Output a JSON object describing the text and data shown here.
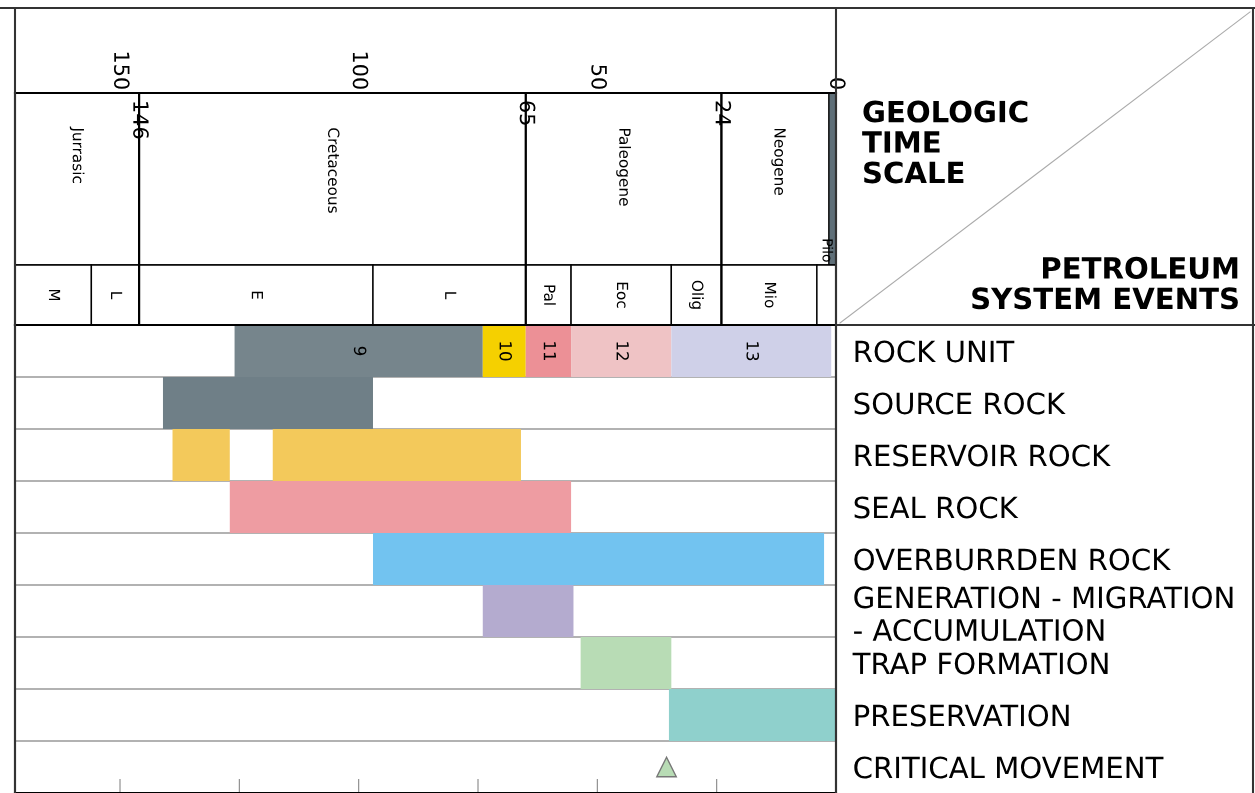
{
  "chart_data": [
    {
      "type": "bar",
      "orientation": "horizontal",
      "categories": [
        null,
        null
      ],
      "xlim": [
        172,
        0
      ],
      "xticks": [
        150,
        {
          "value": 125,
          "label": null
        },
        100,
        {
          "value": 75,
          "label": null
        },
        50,
        {
          "value": 25,
          "label": null
        },
        0
      ],
      "ref_lines": [
        {
          "axis": "x",
          "value": 146,
          "label": "146"
        },
        {
          "axis": "x",
          "value": 65,
          "label": "65"
        },
        {
          "axis": "x",
          "value": 24,
          "label": "24"
        }
      ],
      "annotations": [
        {
          "text": "Pilo",
          "x": 2
        },
        "GEOLOGIC\nTIME\nSCALE",
        "PETROLEUM\nSYSTEM EVENTS"
      ],
      "tick_labels": "x",
      "series": [
        {
          "name": "Jurrasic",
          "color": "#ffffff",
          "base": [
            146,
            null
          ],
          "values": [
            26,
            null
          ]
        },
        {
          "name": "Cretaceous",
          "color": "#ffffff",
          "base": [
            65,
            null
          ],
          "values": [
            81,
            null
          ]
        },
        {
          "name": "Paleogene",
          "color": "#ffffff",
          "base": [
            24,
            null
          ],
          "values": [
            41,
            null
          ]
        },
        {
          "name": "Neogene",
          "color": "#ffffff",
          "base": [
            0,
            null
          ],
          "values": [
            24,
            null
          ]
        },
        {
          "color": "#5f6f78",
          "base": [
            0,
            null
          ],
          "values": [
            1.5,
            null
          ]
        },
        {
          "name": "M",
          "color": "#ffffff",
          "base": [
            null,
            156
          ],
          "values": [
            null,
            16
          ]
        },
        {
          "name": "L",
          "color": "#ffffff",
          "base": [
            null,
            146
          ],
          "values": [
            null,
            10
          ]
        },
        {
          "name": "E",
          "color": "#ffffff",
          "base": [
            null,
            97
          ],
          "values": [
            null,
            49
          ]
        },
        {
          "name": "L",
          "color": "#ffffff",
          "base": [
            null,
            65
          ],
          "values": [
            null,
            32
          ]
        },
        {
          "name": "Pal",
          "color": "#ffffff",
          "base": [
            null,
            55.5
          ],
          "values": [
            null,
            9.5
          ]
        },
        {
          "name": "Eoc",
          "color": "#ffffff",
          "base": [
            null,
            34.5
          ],
          "values": [
            null,
            21
          ]
        },
        {
          "name": "Olig",
          "color": "#ffffff",
          "base": [
            null,
            24
          ],
          "values": [
            null,
            10.5
          ]
        },
        {
          "name": "Mio",
          "color": "#ffffff",
          "base": [
            null,
            4
          ],
          "values": [
            null,
            20
          ]
        },
        {
          "color": "#ffffff",
          "base": [
            null,
            0
          ],
          "values": [
            null,
            4
          ]
        }
      ]
    },
    {
      "type": "bar",
      "orientation": "horizontal",
      "categories": [
        "ROCK UNIT",
        "SOURCE ROCK",
        "RESERVOIR ROCK",
        "SEAL ROCK",
        "OVERBURRDEN ROCK",
        "GENERATION - MIGRATION - ACCUMULATION",
        "TRAP FORMATION",
        "PRESERVATION",
        "CRITICAL MOVEMENT"
      ],
      "xlim": [
        172,
        0
      ],
      "xticks": [
        {
          "value": 150,
          "label": null
        },
        {
          "value": 125,
          "label": null
        },
        {
          "value": 100,
          "label": null
        },
        {
          "value": 75,
          "label": null
        },
        {
          "value": 50,
          "label": null
        },
        {
          "value": 25,
          "label": null
        }
      ],
      "tick_labels": "y",
      "series": [
        {
          "name": "9",
          "color": "#76858c",
          "base": [
            74,
            null,
            null,
            null,
            null,
            null,
            null,
            null,
            null
          ],
          "values": [
            52,
            null,
            null,
            null,
            null,
            null,
            null,
            null,
            null
          ]
        },
        {
          "name": "10",
          "color": "#f5d000",
          "base": [
            65,
            null,
            null,
            null,
            null,
            null,
            null,
            null,
            null
          ],
          "values": [
            9,
            null,
            null,
            null,
            null,
            null,
            null,
            null,
            null
          ]
        },
        {
          "name": "11",
          "color": "#ec9096",
          "base": [
            55.5,
            null,
            null,
            null,
            null,
            null,
            null,
            null,
            null
          ],
          "values": [
            9.5,
            null,
            null,
            null,
            null,
            null,
            null,
            null,
            null
          ]
        },
        {
          "name": "12",
          "color": "#efc3c5",
          "base": [
            34.5,
            null,
            null,
            null,
            null,
            null,
            null,
            null,
            null
          ],
          "values": [
            21,
            null,
            null,
            null,
            null,
            null,
            null,
            null,
            null
          ]
        },
        {
          "name": "13",
          "color": "#cfd0e8",
          "base": [
            1,
            null,
            null,
            null,
            null,
            null,
            null,
            null,
            null
          ],
          "values": [
            33.5,
            null,
            null,
            null,
            null,
            null,
            null,
            null,
            null
          ]
        },
        {
          "color": "#6f7f87",
          "base": [
            null,
            97,
            null,
            null,
            null,
            null,
            null,
            null,
            null
          ],
          "values": [
            null,
            44,
            null,
            null,
            null,
            null,
            null,
            null,
            null
          ]
        },
        {
          "color": "#f3c95b",
          "base": [
            null,
            null,
            127,
            null,
            null,
            null,
            null,
            null,
            null
          ],
          "values": [
            null,
            null,
            12,
            null,
            null,
            null,
            null,
            null,
            null
          ]
        },
        {
          "color": "#f3c95b",
          "base": [
            null,
            null,
            66,
            null,
            null,
            null,
            null,
            null,
            null
          ],
          "values": [
            null,
            null,
            52,
            null,
            null,
            null,
            null,
            null,
            null
          ]
        },
        {
          "color": "#ee9ca2",
          "base": [
            null,
            null,
            null,
            55.5,
            null,
            null,
            null,
            null,
            null
          ],
          "values": [
            null,
            null,
            null,
            71.5,
            null,
            null,
            null,
            null,
            null
          ]
        },
        {
          "color": "#72c3f0",
          "base": [
            null,
            null,
            null,
            null,
            2.5,
            null,
            null,
            null,
            null
          ],
          "values": [
            null,
            null,
            null,
            null,
            94.5,
            null,
            null,
            null,
            null
          ]
        },
        {
          "color": "#b4abcf",
          "base": [
            null,
            null,
            null,
            null,
            null,
            55,
            null,
            null,
            null
          ],
          "values": [
            null,
            null,
            null,
            null,
            null,
            19,
            null,
            null,
            null
          ]
        },
        {
          "color": "#b8dcb5",
          "base": [
            null,
            null,
            null,
            null,
            null,
            null,
            34.5,
            null,
            null
          ],
          "values": [
            null,
            null,
            null,
            null,
            null,
            null,
            19,
            null,
            null
          ]
        },
        {
          "color": "#8fd0cc",
          "base": [
            null,
            null,
            null,
            null,
            null,
            null,
            null,
            0,
            null
          ],
          "values": [
            null,
            null,
            null,
            null,
            null,
            null,
            null,
            35,
            null
          ]
        },
        {
          "type": "scatter",
          "marker": "triangle",
          "color": "#b8dcb5",
          "values": [
            null,
            null,
            null,
            null,
            null,
            null,
            null,
            null,
            35.5
          ]
        }
      ]
    }
  ]
}
